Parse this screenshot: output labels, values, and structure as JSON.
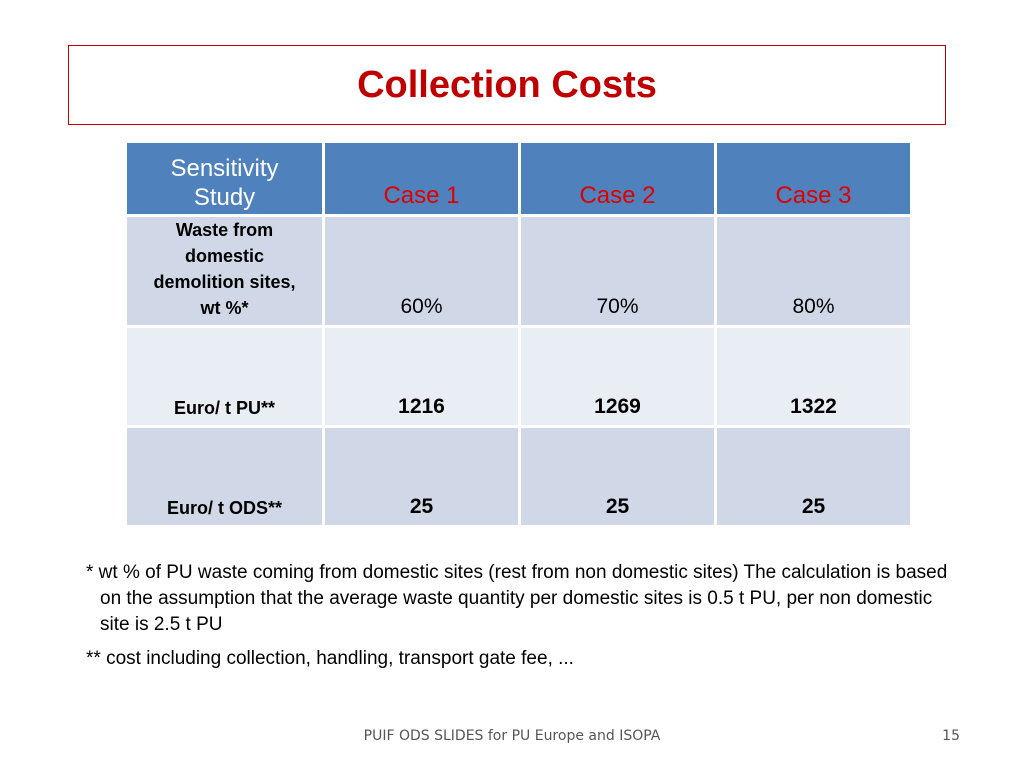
{
  "title": "Collection Costs",
  "table": {
    "corner_line1": "Sensitivity",
    "corner_line2": "Study",
    "columns": [
      "Case 1",
      "Case 2",
      "Case 3"
    ],
    "rows": [
      {
        "label_lines": [
          "Waste from",
          "domestic",
          "demolition sites,",
          "wt %*"
        ],
        "values": [
          "60%",
          "70%",
          "80%"
        ],
        "bold": false
      },
      {
        "label_lines": [
          "Euro/ t PU**"
        ],
        "values": [
          "1216",
          "1269",
          "1322"
        ],
        "bold": true
      },
      {
        "label_lines": [
          "Euro/ t ODS**"
        ],
        "values": [
          "25",
          "25",
          "25"
        ],
        "bold": true
      }
    ]
  },
  "notes": [
    "* wt % of PU waste coming from domestic sites (rest from non domestic sites)  The calculation is based on the assumption that the average waste quantity per domestic sites is 0.5 t PU, per non domestic site is 2.5 t PU",
    "** cost including collection, handling, transport gate fee, ..."
  ],
  "footer": "PUIF ODS SLIDES for PU Europe and ISOPA",
  "page_number": "15",
  "colors": {
    "title": "#c00000",
    "header_bg": "#4f81bd",
    "case_text": "#e00000",
    "row_dark": "#d0d8e8",
    "row_light": "#e9edf4"
  }
}
